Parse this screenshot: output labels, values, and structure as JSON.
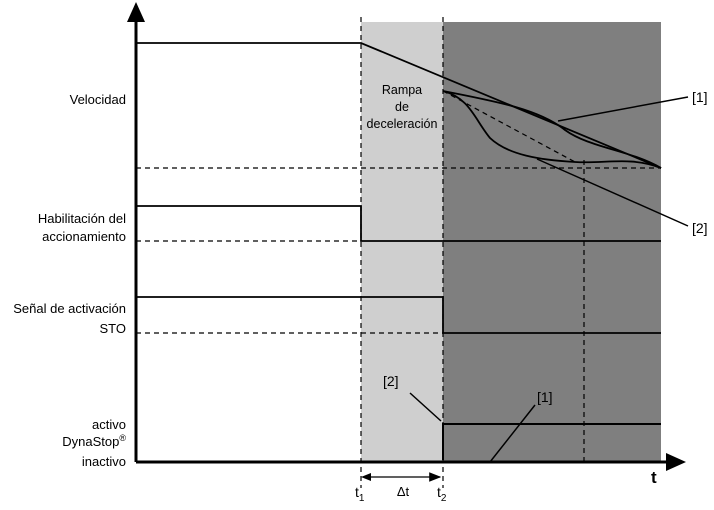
{
  "signals": {
    "velocidad": "Velocidad",
    "habilitacion_line1": "Habilitación del",
    "habilitacion_line2": "accionamiento",
    "sto_line1": "Señal de activación",
    "sto_line2": "STO",
    "dynastop_activo": "activo",
    "dynastop_name": "DynaStop",
    "dynastop_reg": "®",
    "dynastop_inactivo": "inactivo"
  },
  "annotations": {
    "rampa_line1": "Rampa",
    "rampa_line2": "de",
    "rampa_line3": "deceleración",
    "curve1_ref": "[1]",
    "curve2_ref": "[2]",
    "dynastop_ref2": "[2]",
    "dynastop_ref1": "[1]"
  },
  "axis": {
    "time_label": "t",
    "t1_base": "t",
    "t1_sub": "1",
    "t2_base": "t",
    "t2_sub": "2",
    "delta_t": "Δt"
  },
  "colors": {
    "light_band": "#cfcfcf",
    "dark_band": "#7f7f7f",
    "line": "#000000"
  }
}
